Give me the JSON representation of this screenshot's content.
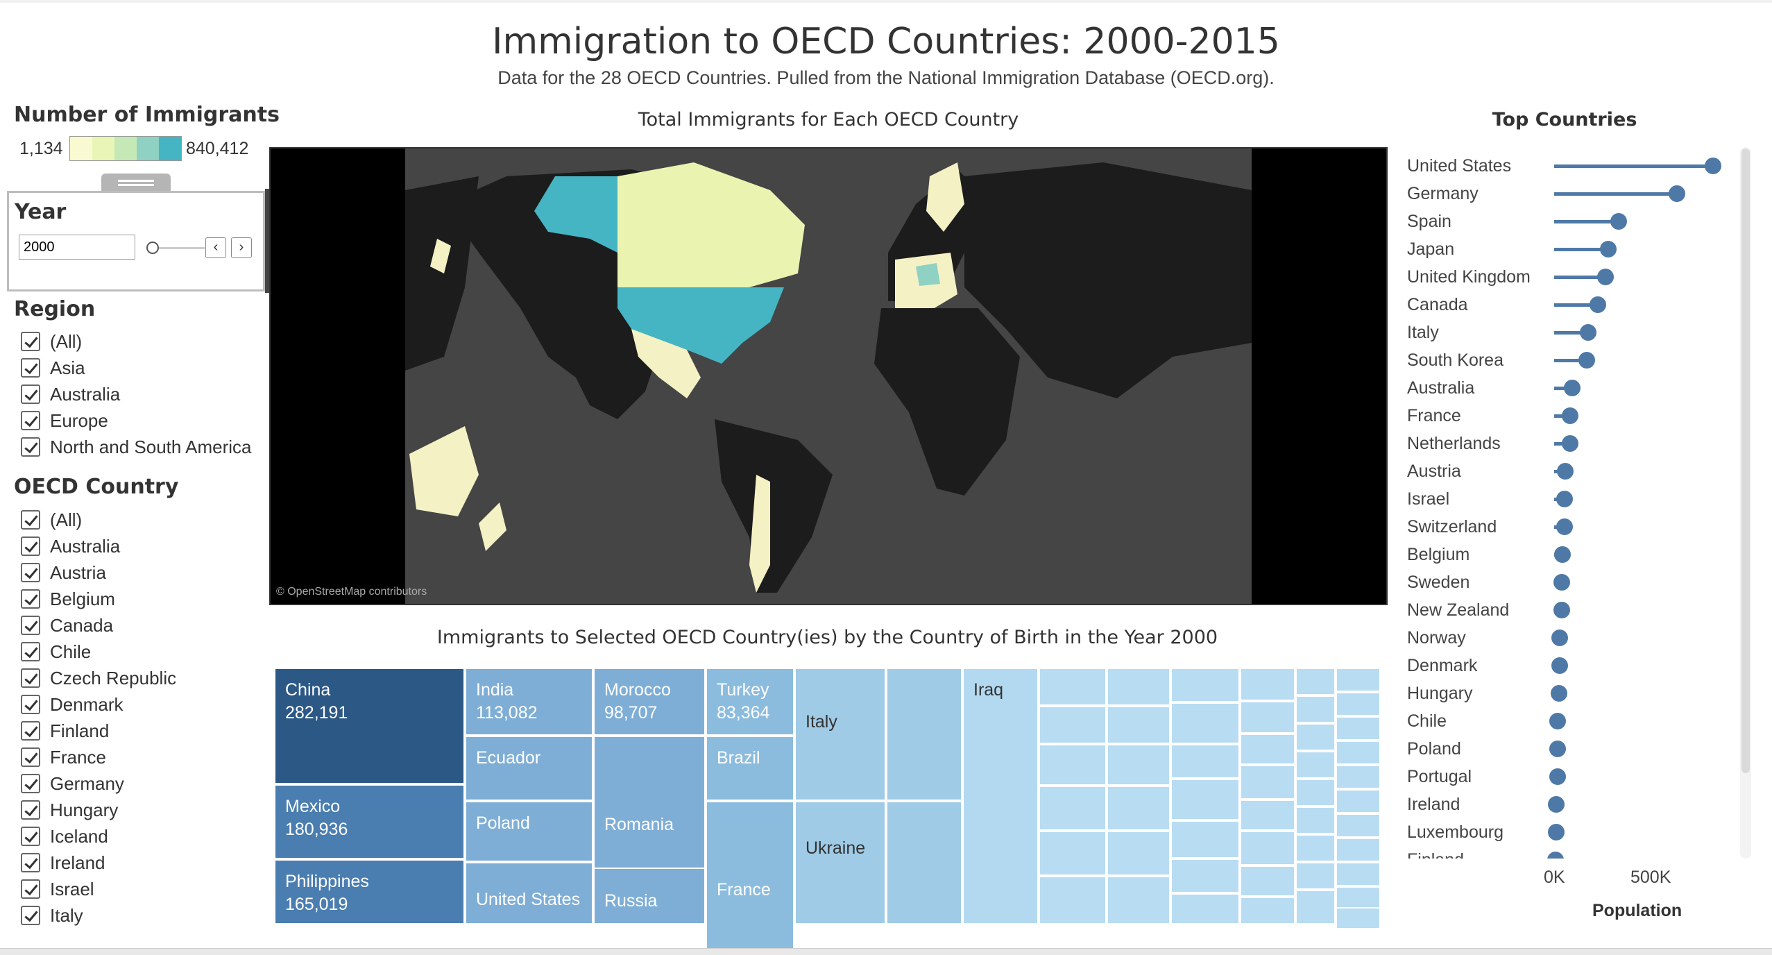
{
  "header": {
    "title": "Immigration to OECD Countries: 2000-2015",
    "subtitle": "Data for the 28 OECD Countries. Pulled from the National Immigration Database (OECD.org)."
  },
  "legend": {
    "title": "Number of Immigrants",
    "min": "1,134",
    "max": "840,412",
    "colors": [
      "#fafad2",
      "#e9f5b6",
      "#c5e8b7",
      "#8fd1c2",
      "#45b5c4"
    ]
  },
  "year_filter": {
    "title": "Year",
    "value": "2000",
    "prev_icon": "chevron-left-icon",
    "next_icon": "chevron-right-icon"
  },
  "region_filter": {
    "title": "Region",
    "items": [
      "(All)",
      "Asia",
      "Australia",
      "Europe",
      "North and South America"
    ]
  },
  "country_filter": {
    "title": "OECD Country",
    "items": [
      "(All)",
      "Australia",
      "Austria",
      "Belgium",
      "Canada",
      "Chile",
      "Czech Republic",
      "Denmark",
      "Finland",
      "France",
      "Germany",
      "Hungary",
      "Iceland",
      "Ireland",
      "Israel",
      "Italy"
    ]
  },
  "map": {
    "title": "Total Immigrants for Each OECD Country",
    "attribution": "© OpenStreetMap contributors",
    "land_color": "#1c1c1c",
    "ocean_color": "#454545",
    "highlight_colors": {
      "high": "#45b5c4",
      "low": "#f4f2c4",
      "mid": "#eaf4b0"
    }
  },
  "treemap": {
    "title": "Immigrants to Selected OECD Country(ies) by the Country of Birth in the Year 2000",
    "cells": [
      {
        "name": "China",
        "value": "282,191"
      },
      {
        "name": "Mexico",
        "value": "180,936"
      },
      {
        "name": "Philippines",
        "value": "165,019"
      },
      {
        "name": "India",
        "value": "113,082"
      },
      {
        "name": "Morocco",
        "value": "98,707"
      },
      {
        "name": "Turkey",
        "value": "83,364"
      },
      {
        "name": "Ecuador",
        "value": ""
      },
      {
        "name": "Brazil",
        "value": ""
      },
      {
        "name": "Poland",
        "value": ""
      },
      {
        "name": "Romania",
        "value": ""
      },
      {
        "name": "United States",
        "value": ""
      },
      {
        "name": "Russia",
        "value": ""
      },
      {
        "name": "France",
        "value": ""
      },
      {
        "name": "Italy",
        "value": ""
      },
      {
        "name": "Ukraine",
        "value": ""
      },
      {
        "name": "Iraq",
        "value": ""
      }
    ]
  },
  "top_countries": {
    "title": "Top Countries",
    "axis_ticks": [
      "0K",
      "500K"
    ],
    "axis_title": "Population"
  },
  "chart_data": {
    "type": "bar",
    "title": "Top Countries",
    "xlabel": "Population",
    "xlim": [
      0,
      900000
    ],
    "categories": [
      "United States",
      "Germany",
      "Spain",
      "Japan",
      "United Kingdom",
      "Canada",
      "Italy",
      "South Korea",
      "Australia",
      "France",
      "Netherlands",
      "Austria",
      "Israel",
      "Switzerland",
      "Belgium",
      "Sweden",
      "New Zealand",
      "Norway",
      "Denmark",
      "Hungary",
      "Chile",
      "Poland",
      "Portugal",
      "Ireland",
      "Luxembourg",
      "Finland"
    ],
    "values": [
      840412,
      649000,
      341000,
      285000,
      272000,
      232000,
      181000,
      173000,
      95000,
      85000,
      85000,
      58000,
      55000,
      55000,
      45000,
      40000,
      40000,
      30000,
      30000,
      25000,
      20000,
      18000,
      18000,
      12000,
      10000,
      8000
    ]
  }
}
